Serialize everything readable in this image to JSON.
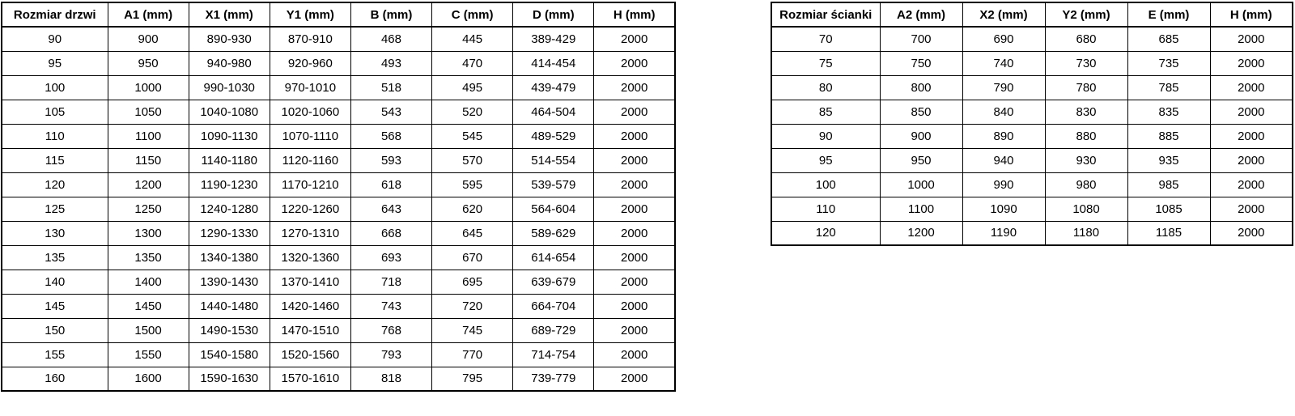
{
  "colors": {
    "background": "#ffffff",
    "border": "#000000",
    "text": "#000000"
  },
  "door_table": {
    "title": "door-size-table",
    "headers": [
      "Rozmiar drzwi",
      "A1 (mm)",
      "X1 (mm)",
      "Y1 (mm)",
      "B (mm)",
      "C (mm)",
      "D (mm)",
      "H (mm)"
    ],
    "rows": [
      [
        "90",
        "900",
        "890-930",
        "870-910",
        "468",
        "445",
        "389-429",
        "2000"
      ],
      [
        "95",
        "950",
        "940-980",
        "920-960",
        "493",
        "470",
        "414-454",
        "2000"
      ],
      [
        "100",
        "1000",
        "990-1030",
        "970-1010",
        "518",
        "495",
        "439-479",
        "2000"
      ],
      [
        "105",
        "1050",
        "1040-1080",
        "1020-1060",
        "543",
        "520",
        "464-504",
        "2000"
      ],
      [
        "110",
        "1100",
        "1090-1130",
        "1070-1110",
        "568",
        "545",
        "489-529",
        "2000"
      ],
      [
        "115",
        "1150",
        "1140-1180",
        "1120-1160",
        "593",
        "570",
        "514-554",
        "2000"
      ],
      [
        "120",
        "1200",
        "1190-1230",
        "1170-1210",
        "618",
        "595",
        "539-579",
        "2000"
      ],
      [
        "125",
        "1250",
        "1240-1280",
        "1220-1260",
        "643",
        "620",
        "564-604",
        "2000"
      ],
      [
        "130",
        "1300",
        "1290-1330",
        "1270-1310",
        "668",
        "645",
        "589-629",
        "2000"
      ],
      [
        "135",
        "1350",
        "1340-1380",
        "1320-1360",
        "693",
        "670",
        "614-654",
        "2000"
      ],
      [
        "140",
        "1400",
        "1390-1430",
        "1370-1410",
        "718",
        "695",
        "639-679",
        "2000"
      ],
      [
        "145",
        "1450",
        "1440-1480",
        "1420-1460",
        "743",
        "720",
        "664-704",
        "2000"
      ],
      [
        "150",
        "1500",
        "1490-1530",
        "1470-1510",
        "768",
        "745",
        "689-729",
        "2000"
      ],
      [
        "155",
        "1550",
        "1540-1580",
        "1520-1560",
        "793",
        "770",
        "714-754",
        "2000"
      ],
      [
        "160",
        "1600",
        "1590-1630",
        "1570-1610",
        "818",
        "795",
        "739-779",
        "2000"
      ]
    ]
  },
  "wall_table": {
    "title": "wall-size-table",
    "headers": [
      "Rozmiar ścianki",
      "A2 (mm)",
      "X2 (mm)",
      "Y2 (mm)",
      "E (mm)",
      "H (mm)"
    ],
    "rows": [
      [
        "70",
        "700",
        "690",
        "680",
        "685",
        "2000"
      ],
      [
        "75",
        "750",
        "740",
        "730",
        "735",
        "2000"
      ],
      [
        "80",
        "800",
        "790",
        "780",
        "785",
        "2000"
      ],
      [
        "85",
        "850",
        "840",
        "830",
        "835",
        "2000"
      ],
      [
        "90",
        "900",
        "890",
        "880",
        "885",
        "2000"
      ],
      [
        "95",
        "950",
        "940",
        "930",
        "935",
        "2000"
      ],
      [
        "100",
        "1000",
        "990",
        "980",
        "985",
        "2000"
      ],
      [
        "110",
        "1100",
        "1090",
        "1080",
        "1085",
        "2000"
      ],
      [
        "120",
        "1200",
        "1190",
        "1180",
        "1185",
        "2000"
      ]
    ]
  }
}
